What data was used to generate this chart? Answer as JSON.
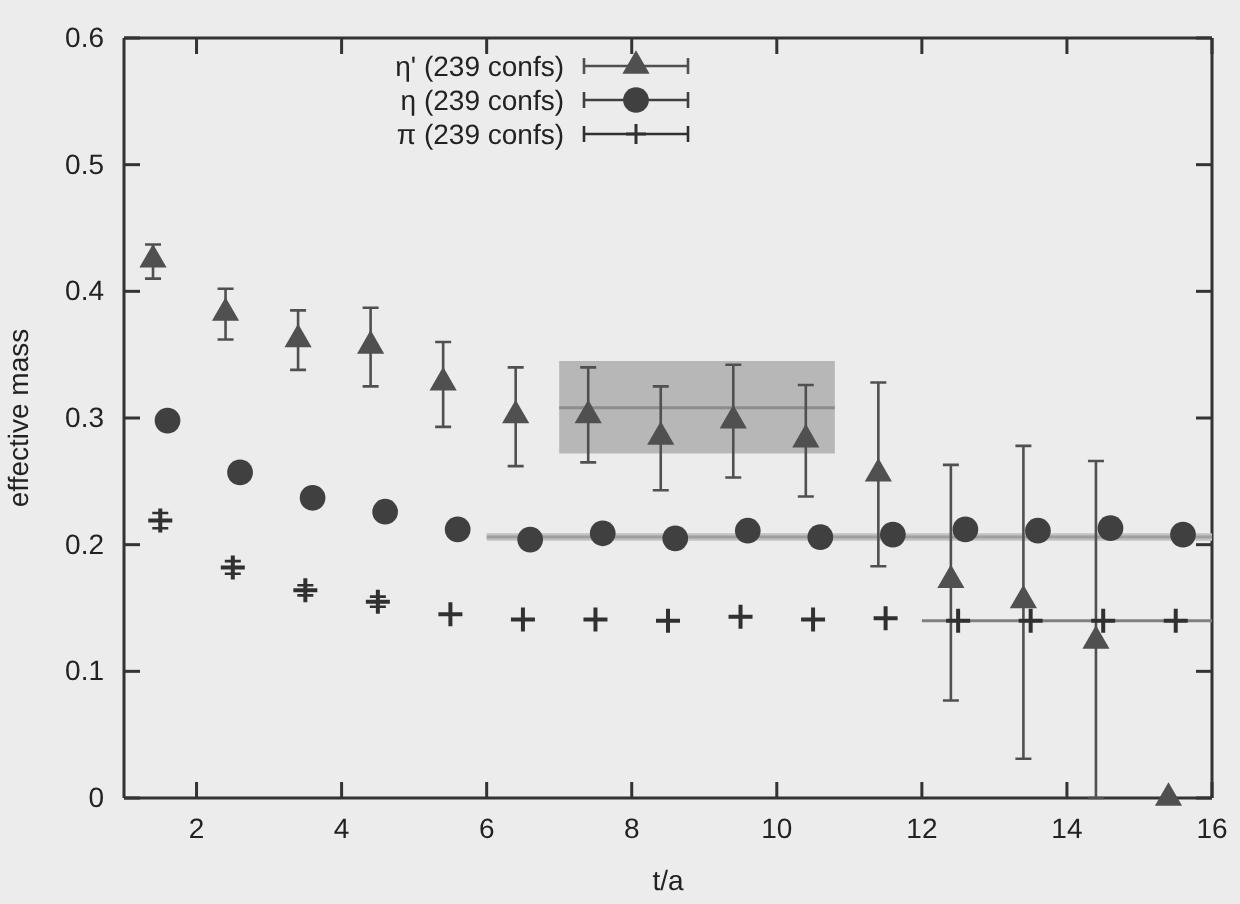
{
  "chart_data": {
    "type": "scatter",
    "xlabel": "t/a",
    "ylabel": "effective mass",
    "xlim": [
      1,
      16
    ],
    "ylim": [
      0,
      0.6
    ],
    "xticks": [
      2,
      4,
      6,
      8,
      10,
      12,
      14,
      16
    ],
    "yticks": [
      0,
      0.1,
      0.2,
      0.3,
      0.4,
      0.5,
      0.6
    ],
    "grid": false,
    "legend": "top left",
    "series": [
      {
        "name": "η' (239 confs)",
        "marker": "triangle",
        "color": "#505050",
        "x": [
          1.4,
          2.4,
          3.4,
          4.4,
          5.4,
          6.4,
          7.4,
          8.4,
          9.4,
          10.4,
          11.4,
          12.4,
          13.4,
          14.4,
          15.4
        ],
        "values": [
          0.425,
          0.383,
          0.362,
          0.357,
          0.328,
          0.302,
          0.302,
          0.285,
          0.298,
          0.283,
          0.256,
          0.172,
          0.156,
          0.124,
          0.0
        ],
        "errors": [
          [
            0.41,
            0.437
          ],
          [
            0.362,
            0.402
          ],
          [
            0.338,
            0.385
          ],
          [
            0.325,
            0.387
          ],
          [
            0.293,
            0.36
          ],
          [
            0.262,
            0.34
          ],
          [
            0.265,
            0.34
          ],
          [
            0.243,
            0.325
          ],
          [
            0.253,
            0.342
          ],
          [
            0.238,
            0.326
          ],
          [
            0.183,
            0.328
          ],
          [
            0.077,
            0.263
          ],
          [
            0.031,
            0.278
          ],
          [
            0,
            0.266
          ],
          null
        ]
      },
      {
        "name": "η (239 confs)",
        "marker": "circle",
        "color": "#404040",
        "x": [
          1.6,
          2.6,
          3.6,
          4.6,
          5.6,
          6.6,
          7.6,
          8.6,
          9.6,
          10.6,
          11.6,
          12.6,
          13.6,
          14.6,
          15.6
        ],
        "values": [
          0.298,
          0.257,
          0.237,
          0.226,
          0.212,
          0.204,
          0.209,
          0.205,
          0.211,
          0.206,
          0.208,
          0.212,
          0.211,
          0.213,
          0.208
        ],
        "errors": [
          null,
          null,
          null,
          null,
          null,
          null,
          null,
          null,
          null,
          null,
          null,
          null,
          null,
          0.007,
          null
        ]
      },
      {
        "name": "π (239 confs)",
        "marker": "cross",
        "color": "#303030",
        "x": [
          1.5,
          2.5,
          3.5,
          4.5,
          5.5,
          6.5,
          7.5,
          8.5,
          9.5,
          10.5,
          11.5,
          12.5,
          13.5,
          14.5,
          15.5
        ],
        "values": [
          0.219,
          0.182,
          0.164,
          0.155,
          0.145,
          0.141,
          0.141,
          0.14,
          0.143,
          0.141,
          0.142,
          0.14,
          0.14,
          0.14,
          0.14
        ],
        "errors": [
          0.006,
          0.005,
          0.004,
          0.004,
          null,
          null,
          null,
          null,
          null,
          null,
          null,
          null,
          null,
          null,
          null
        ]
      },
      {
        "type": "line",
        "marker": "none",
        "color": "#8c8c8c",
        "x": [
          7,
          10.8
        ],
        "values": [
          0.308,
          0.308
        ],
        "lower": [
          0.272,
          0.272
        ],
        "upper": [
          0.345,
          0.345
        ]
      },
      {
        "type": "line",
        "marker": "none",
        "color": "#a0a0a0",
        "x": [
          6,
          16
        ],
        "values": [
          0.206,
          0.206
        ],
        "lower": [
          0.203,
          0.203
        ],
        "upper": [
          0.209,
          0.209
        ]
      },
      {
        "type": "line",
        "marker": "none",
        "color": "#808080",
        "x": [
          12,
          16
        ],
        "values": [
          0.14,
          0.14
        ]
      }
    ]
  }
}
